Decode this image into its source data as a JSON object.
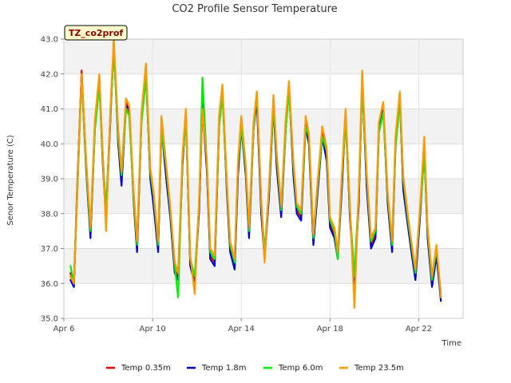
{
  "chart_data": {
    "type": "line",
    "title": "CO2 Profile Sensor Temperature",
    "xlabel": "Time",
    "ylabel": "Senor Temperature (C)",
    "tag": "TZ_co2prof",
    "ylim": [
      35.0,
      43.0
    ],
    "yticks": [
      "35.0",
      "36.0",
      "37.0",
      "38.0",
      "39.0",
      "40.0",
      "41.0",
      "42.0",
      "43.0"
    ],
    "xlim_days": [
      6,
      24
    ],
    "xticks": [
      {
        "label": "Apr 6",
        "day": 6
      },
      {
        "label": "Apr 10",
        "day": 10
      },
      {
        "label": "Apr 14",
        "day": 14
      },
      {
        "label": "Apr 18",
        "day": 18
      },
      {
        "label": "Apr 22",
        "day": 22
      }
    ],
    "grid": true,
    "legend_position": "bottom",
    "x": [
      6.3,
      6.45,
      6.6,
      6.8,
      7.0,
      7.2,
      7.4,
      7.6,
      7.75,
      7.9,
      8.1,
      8.25,
      8.45,
      8.6,
      8.8,
      8.95,
      9.15,
      9.3,
      9.5,
      9.7,
      9.9,
      10.05,
      10.25,
      10.4,
      10.6,
      10.8,
      11.0,
      11.15,
      11.35,
      11.5,
      11.7,
      11.9,
      12.1,
      12.25,
      12.45,
      12.6,
      12.8,
      13.0,
      13.15,
      13.35,
      13.5,
      13.7,
      13.85,
      14.0,
      14.2,
      14.35,
      14.55,
      14.7,
      14.9,
      15.05,
      15.25,
      15.45,
      15.6,
      15.8,
      16.0,
      16.15,
      16.35,
      16.5,
      16.7,
      16.9,
      17.05,
      17.25,
      17.45,
      17.65,
      17.85,
      18.0,
      18.2,
      18.35,
      18.55,
      18.7,
      18.9,
      19.1,
      19.3,
      19.45,
      19.65,
      19.85,
      20.05,
      20.2,
      20.4,
      20.6,
      20.8,
      20.95,
      21.15,
      21.3,
      21.5,
      21.65,
      21.85,
      22.05,
      22.25,
      22.4,
      22.6,
      22.8,
      23.0
    ],
    "series": [
      {
        "name": "Temp 0.35m",
        "color": "#ee0000",
        "values": [
          36.3,
          35.9,
          38.6,
          42.1,
          39.5,
          37.4,
          40.6,
          41.8,
          39.7,
          38.0,
          40.9,
          42.8,
          40.3,
          39.0,
          41.2,
          40.9,
          38.5,
          37.0,
          40.8,
          42.0,
          39.1,
          38.4,
          37.0,
          40.6,
          39.3,
          38.0,
          36.4,
          36.2,
          39.5,
          40.8,
          36.6,
          36.1,
          38.2,
          41.2,
          39.3,
          36.8,
          36.6,
          40.6,
          41.5,
          38.7,
          37.0,
          36.5,
          39.3,
          40.6,
          39.2,
          37.4,
          40.5,
          41.2,
          38.2,
          36.8,
          38.6,
          41.2,
          39.5,
          38.0,
          40.5,
          41.6,
          39.3,
          38.1,
          37.9,
          40.6,
          40.1,
          37.2,
          38.8,
          40.3,
          39.7,
          37.7,
          37.4,
          36.8,
          39.1,
          40.8,
          38.0,
          36.1,
          38.5,
          41.8,
          39.0,
          37.1,
          37.4,
          40.4,
          41.0,
          38.4,
          37.0,
          40.0,
          41.3,
          38.9,
          37.8,
          37.1,
          36.2,
          37.9,
          39.8,
          37.4,
          36.0,
          36.9,
          35.6
        ]
      },
      {
        "name": "Temp 1.8m",
        "color": "#0000cc",
        "values": [
          36.1,
          35.9,
          38.8,
          42.0,
          39.3,
          37.3,
          40.5,
          41.9,
          39.5,
          37.8,
          40.7,
          42.9,
          40.0,
          38.8,
          41.1,
          41.0,
          38.3,
          36.9,
          40.7,
          42.1,
          39.0,
          38.2,
          36.9,
          40.5,
          39.1,
          37.9,
          36.3,
          36.1,
          39.4,
          40.9,
          36.5,
          36.0,
          38.1,
          41.1,
          39.2,
          36.7,
          36.5,
          40.5,
          41.6,
          38.6,
          36.9,
          36.4,
          39.1,
          40.5,
          39.1,
          37.3,
          40.4,
          41.3,
          38.0,
          36.7,
          38.5,
          41.1,
          39.3,
          37.9,
          40.4,
          41.7,
          39.1,
          38.0,
          37.8,
          40.5,
          40.0,
          37.1,
          38.7,
          40.2,
          39.5,
          37.6,
          37.3,
          36.7,
          38.9,
          40.9,
          37.9,
          36.0,
          38.3,
          41.9,
          38.8,
          37.0,
          37.3,
          40.3,
          41.1,
          38.3,
          36.9,
          39.9,
          41.4,
          38.7,
          37.7,
          37.0,
          36.1,
          37.8,
          39.9,
          37.3,
          35.9,
          36.8,
          35.5
        ]
      },
      {
        "name": "Temp 6.0m",
        "color": "#00ee00",
        "values": [
          36.5,
          36.0,
          38.5,
          41.9,
          39.4,
          37.5,
          40.4,
          41.7,
          39.6,
          38.1,
          40.8,
          42.7,
          40.2,
          39.1,
          41.0,
          40.8,
          38.4,
          37.1,
          40.6,
          41.9,
          39.2,
          38.5,
          37.1,
          40.4,
          39.4,
          38.1,
          36.5,
          35.6,
          39.6,
          40.7,
          36.7,
          36.2,
          38.3,
          41.9,
          39.4,
          36.9,
          36.7,
          40.5,
          41.4,
          38.8,
          37.1,
          36.6,
          39.4,
          40.5,
          39.3,
          37.5,
          40.4,
          41.5,
          38.3,
          36.9,
          38.7,
          41.1,
          39.6,
          38.1,
          40.4,
          41.5,
          39.4,
          38.2,
          38.0,
          40.5,
          40.2,
          37.3,
          38.9,
          40.2,
          39.8,
          37.8,
          37.5,
          36.7,
          39.2,
          40.7,
          38.1,
          36.2,
          38.6,
          41.7,
          39.1,
          37.2,
          37.5,
          40.3,
          40.9,
          38.5,
          37.1,
          39.9,
          41.2,
          39.0,
          37.9,
          37.2,
          36.3,
          38.0,
          39.7,
          37.5,
          36.1,
          37.0,
          35.7
        ]
      },
      {
        "name": "Temp 23.5m",
        "color": "#ff9900",
        "values": [
          36.2,
          36.0,
          38.7,
          42.0,
          39.6,
          37.6,
          40.7,
          42.0,
          39.8,
          37.5,
          41.0,
          43.0,
          40.4,
          39.2,
          41.3,
          41.1,
          38.6,
          37.2,
          40.9,
          42.3,
          39.3,
          38.6,
          37.2,
          40.8,
          39.5,
          38.2,
          36.6,
          36.3,
          39.7,
          41.0,
          36.8,
          35.7,
          38.4,
          41.0,
          39.5,
          37.0,
          36.8,
          40.8,
          41.7,
          38.9,
          37.2,
          36.7,
          39.5,
          40.8,
          39.4,
          37.6,
          40.6,
          41.5,
          38.4,
          36.6,
          38.8,
          41.4,
          39.7,
          38.2,
          40.7,
          41.8,
          39.5,
          38.3,
          38.1,
          40.8,
          40.3,
          37.4,
          39.0,
          40.5,
          39.9,
          37.9,
          37.6,
          36.9,
          39.3,
          41.0,
          38.2,
          35.3,
          38.7,
          42.1,
          39.2,
          37.3,
          37.6,
          40.6,
          41.2,
          38.6,
          37.2,
          40.2,
          41.5,
          39.1,
          38.0,
          37.3,
          36.4,
          38.1,
          40.2,
          37.6,
          36.2,
          37.1,
          35.6
        ]
      }
    ]
  }
}
